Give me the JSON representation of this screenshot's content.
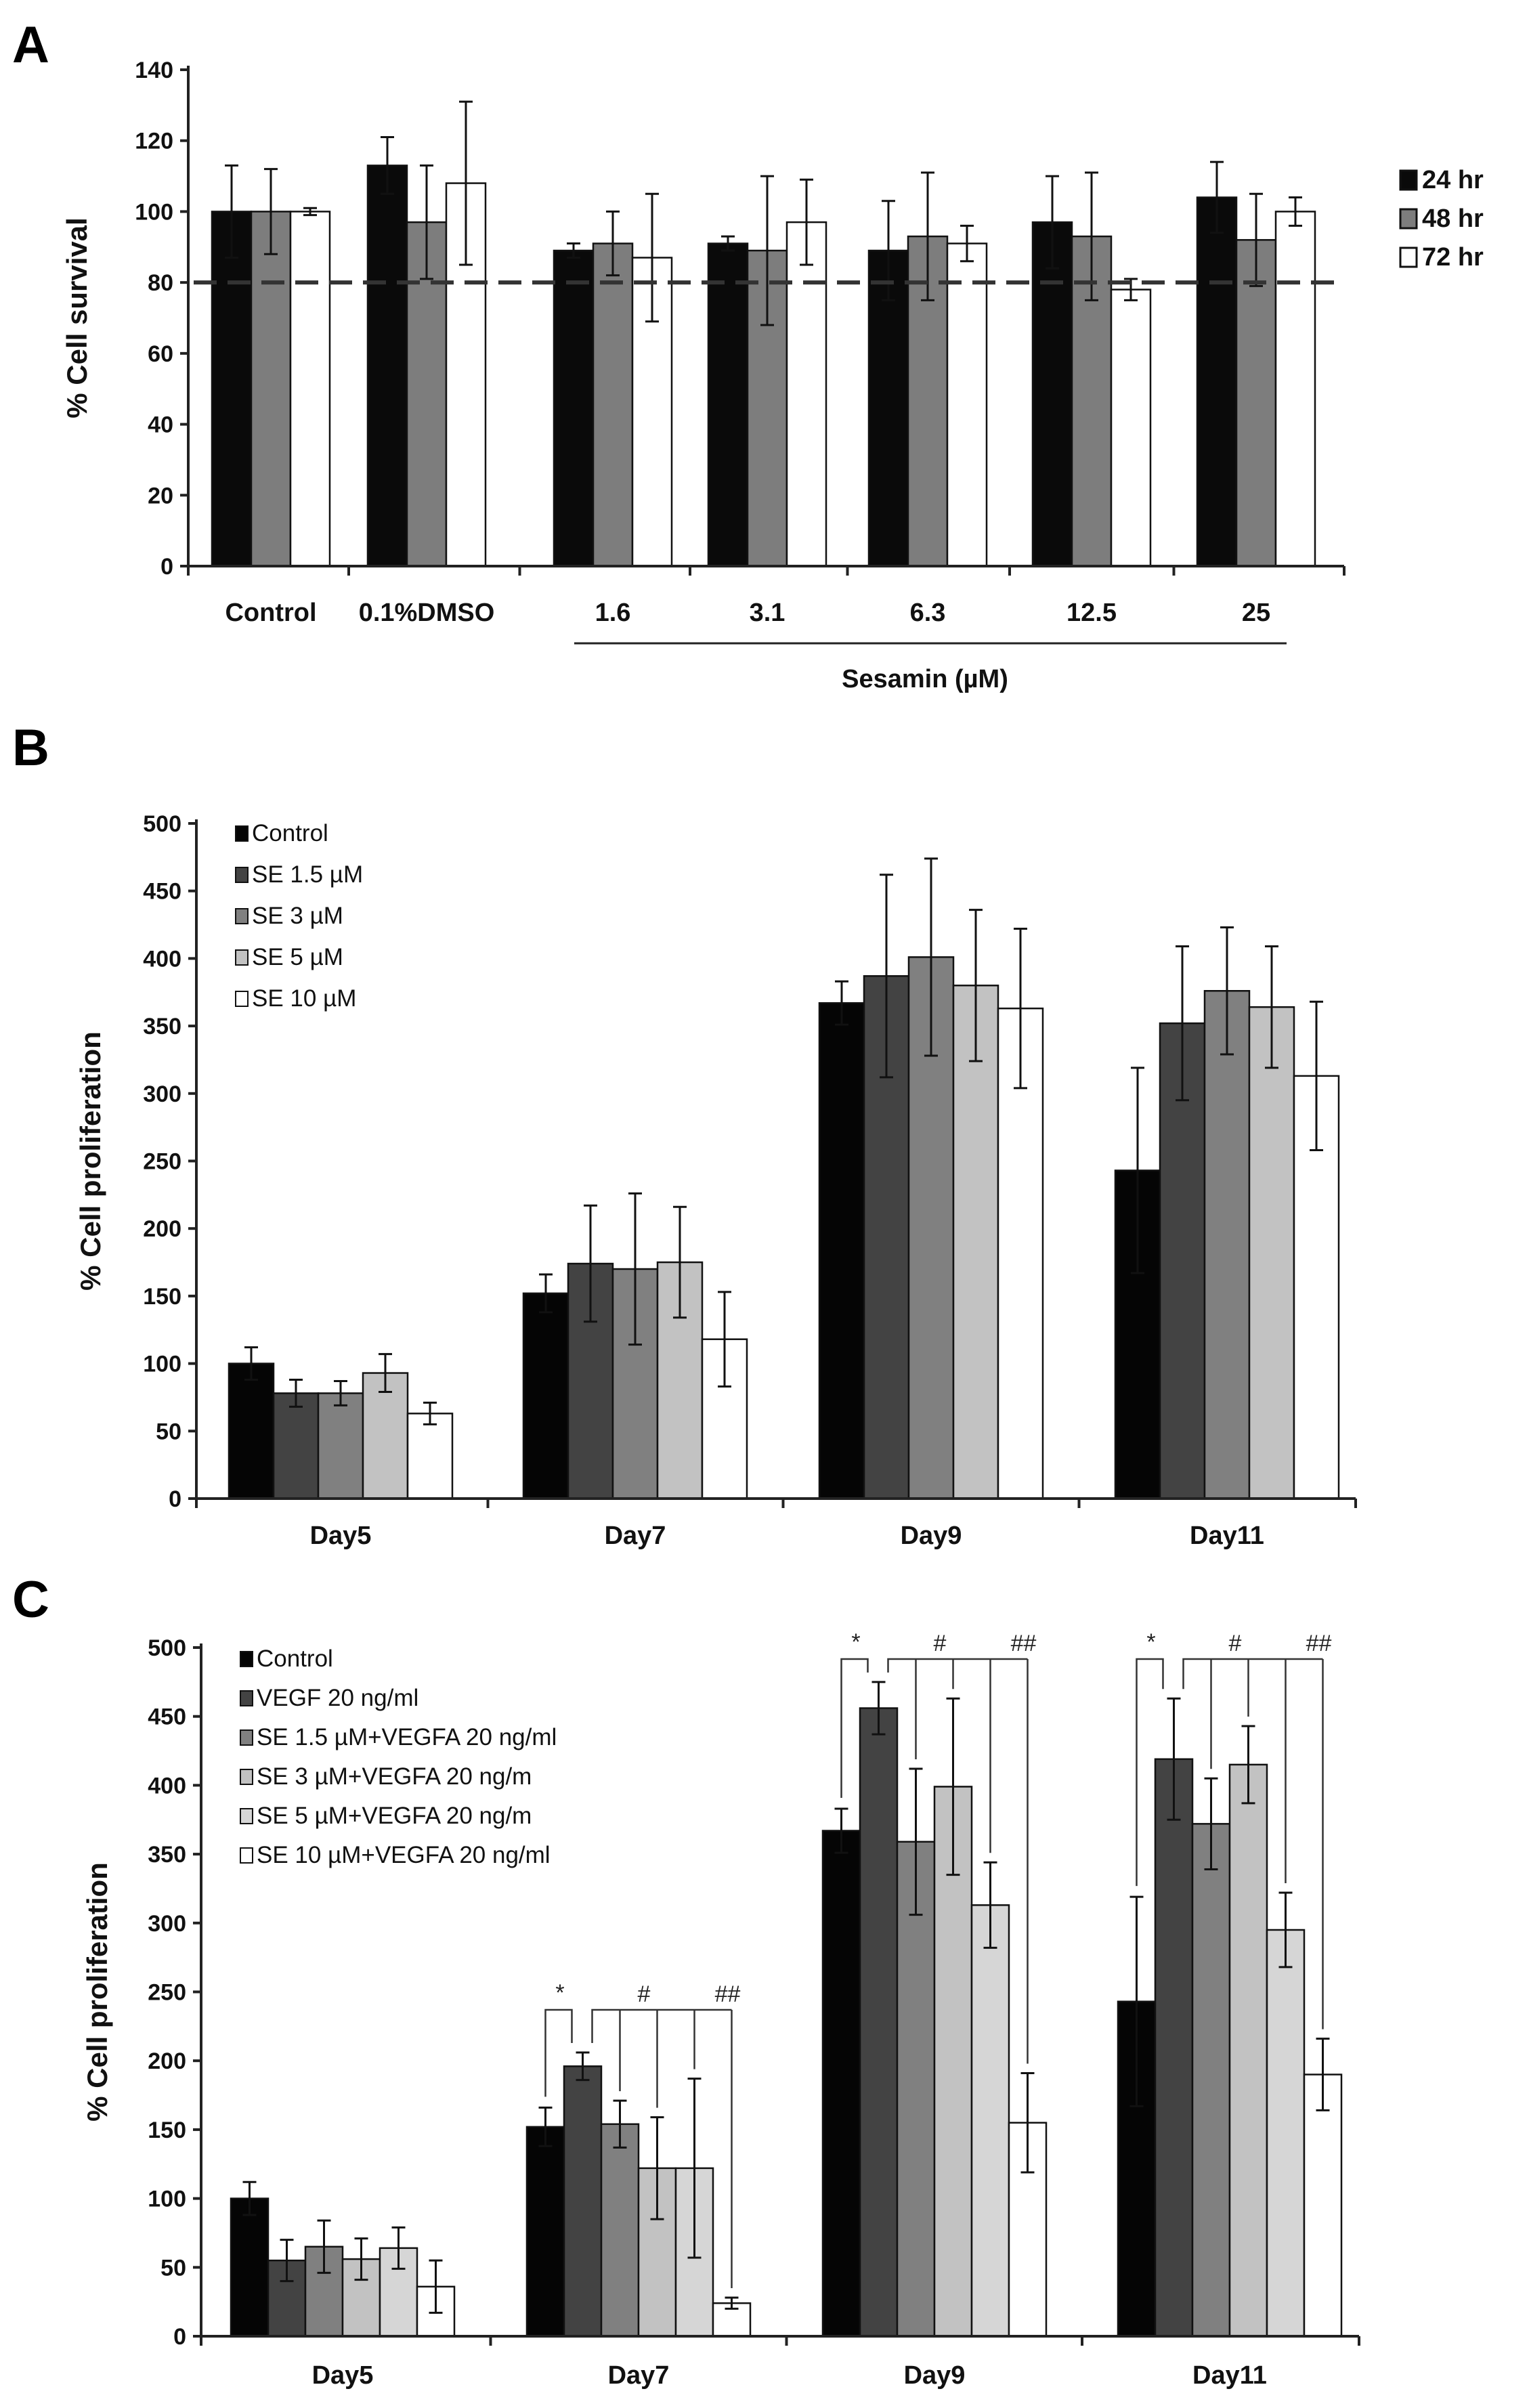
{
  "figure": {
    "panels": [
      "A",
      "B",
      "C"
    ]
  },
  "chart_data": [
    {
      "type": "bar",
      "panel": "A",
      "ylabel": "% Cell survival",
      "ylim": [
        0,
        140
      ],
      "yticks": [
        0,
        20,
        40,
        60,
        80,
        100,
        120,
        140
      ],
      "categories": [
        "Control",
        "0.1%DMSO",
        "1.6",
        "3.1",
        "6.3",
        "12.5",
        "25"
      ],
      "group_label": "Sesamin (µM)",
      "threshold_line": 80,
      "colors": [
        "#0a0a0a",
        "#7d7d7d",
        "#ffffff"
      ],
      "legend_position": "right",
      "series": [
        {
          "name": "24 hr",
          "values": [
            100,
            113,
            89,
            91,
            89,
            97,
            104
          ],
          "errors": [
            13,
            8,
            2,
            2,
            14,
            13,
            10
          ]
        },
        {
          "name": "48 hr",
          "values": [
            100,
            97,
            91,
            89,
            93,
            93,
            92
          ],
          "errors": [
            12,
            16,
            9,
            21,
            18,
            18,
            13
          ]
        },
        {
          "name": "72 hr",
          "values": [
            100,
            108,
            87,
            97,
            91,
            78,
            100
          ],
          "errors": [
            1,
            23,
            18,
            12,
            5,
            3,
            4
          ]
        }
      ]
    },
    {
      "type": "bar",
      "panel": "B",
      "ylabel": "% Cell proliferation",
      "ylim": [
        0,
        500
      ],
      "yticks": [
        0,
        50,
        100,
        150,
        200,
        250,
        300,
        350,
        400,
        450,
        500
      ],
      "categories": [
        "Day5",
        "Day7",
        "Day9",
        "Day11"
      ],
      "colors": [
        "#050505",
        "#434343",
        "#808080",
        "#c2c2c2",
        "#ffffff"
      ],
      "legend_position": "top-left",
      "series": [
        {
          "name": "Control",
          "values": [
            100,
            152,
            367,
            243
          ],
          "errors": [
            12,
            14,
            16,
            76
          ]
        },
        {
          "name": "SE 1.5  µM",
          "values": [
            78,
            174,
            387,
            352
          ],
          "errors": [
            10,
            43,
            75,
            57
          ]
        },
        {
          "name": "SE 3  µM",
          "values": [
            78,
            170,
            401,
            376
          ],
          "errors": [
            9,
            56,
            73,
            47
          ]
        },
        {
          "name": "SE 5  µM",
          "values": [
            93,
            175,
            380,
            364
          ],
          "errors": [
            14,
            41,
            56,
            45
          ]
        },
        {
          "name": "SE 10  µM",
          "values": [
            63,
            118,
            363,
            313
          ],
          "errors": [
            8,
            35,
            59,
            55
          ]
        }
      ]
    },
    {
      "type": "bar",
      "panel": "C",
      "ylabel": "% Cell proliferation",
      "ylim": [
        0,
        500
      ],
      "yticks": [
        0,
        50,
        100,
        150,
        200,
        250,
        300,
        350,
        400,
        450,
        500
      ],
      "categories": [
        "Day5",
        "Day7",
        "Day9",
        "Day11"
      ],
      "colors": [
        "#050505",
        "#434343",
        "#808080",
        "#c2c2c2",
        "#d6d6d6",
        "#ffffff"
      ],
      "legend_position": "top-left",
      "series": [
        {
          "name": "Control",
          "values": [
            100,
            152,
            367,
            243
          ],
          "errors": [
            12,
            14,
            16,
            76
          ]
        },
        {
          "name": "VEGF 20 ng/ml",
          "values": [
            55,
            196,
            456,
            419
          ],
          "errors": [
            15,
            10,
            19,
            44
          ]
        },
        {
          "name": "SE 1.5  µM+VEGFA 20 ng/ml",
          "values": [
            65,
            154,
            359,
            372
          ],
          "errors": [
            19,
            17,
            53,
            33
          ]
        },
        {
          "name": "SE 3  µM+VEGFA 20 ng/m",
          "values": [
            56,
            122,
            399,
            415
          ],
          "errors": [
            15,
            37,
            64,
            28
          ]
        },
        {
          "name": "SE 5  µM+VEGFA 20 ng/m",
          "values": [
            64,
            122,
            313,
            295
          ],
          "errors": [
            15,
            65,
            31,
            27
          ]
        },
        {
          "name": "SE 10  µM+VEGFA 20 ng/ml",
          "values": [
            36,
            24,
            155,
            190
          ],
          "errors": [
            19,
            4,
            36,
            26
          ]
        }
      ],
      "annotations": [
        {
          "category": "Day7",
          "marks": [
            "*",
            "#",
            "##"
          ]
        },
        {
          "category": "Day9",
          "marks": [
            "*",
            "#",
            "##"
          ]
        },
        {
          "category": "Day11",
          "marks": [
            "*",
            "#",
            "##"
          ]
        }
      ]
    }
  ]
}
